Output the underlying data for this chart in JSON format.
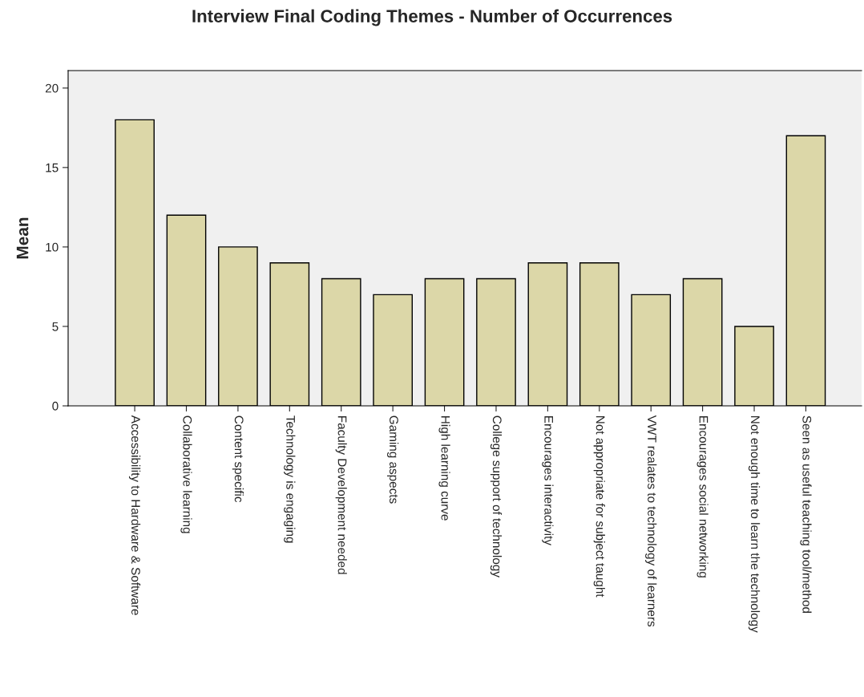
{
  "chart_data": {
    "type": "bar",
    "title": "Interview Final Coding Themes - Number of Occurrences",
    "ylabel": "Mean",
    "categories": [
      "Accessibility to Hardware & Software",
      "Collaborative learning",
      "Content specific",
      "Technology is engaging",
      "Faculty Development needed",
      "Gaming aspects",
      "High learning curve",
      "College support of technology",
      "Encourages interactivity",
      "Not appropriate for subject taught",
      "VWT realates to technology of learners",
      "Encourages social networking",
      "Not enough time to learn the technology",
      "Seen as useful teaching tool/method"
    ],
    "values": [
      18,
      12,
      10,
      9,
      8,
      7,
      8,
      8,
      9,
      9,
      7,
      8,
      5,
      17
    ],
    "color": "#dcd7a8",
    "ylim": [
      0,
      21.1
    ],
    "yticks": [
      0,
      5,
      10,
      15,
      20
    ],
    "grid": false,
    "legend": false
  }
}
